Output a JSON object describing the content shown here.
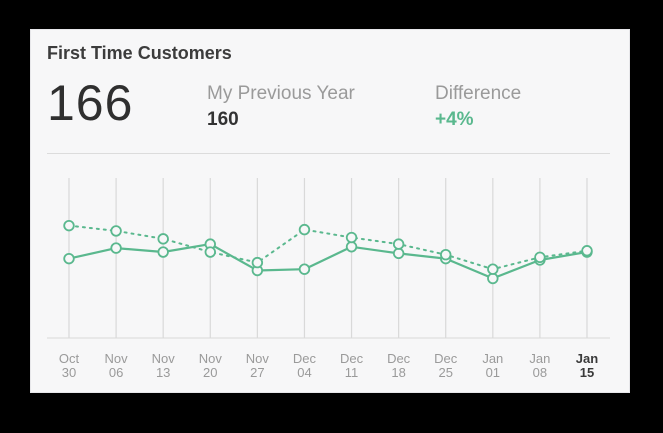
{
  "card": {
    "title": "First Time Customers",
    "value": "166",
    "previous_label": "My Previous Year",
    "previous_value": "160",
    "difference_label": "Difference",
    "difference_value": "+4%"
  },
  "colors": {
    "accent": "#5ab88e",
    "grid": "#d9d9d9",
    "text_muted": "#9a9a9a"
  },
  "chart_data": {
    "type": "line",
    "x": [
      [
        "Oct",
        "30"
      ],
      [
        "Nov",
        "06"
      ],
      [
        "Nov",
        "13"
      ],
      [
        "Nov",
        "20"
      ],
      [
        "Nov",
        "27"
      ],
      [
        "Dec",
        "04"
      ],
      [
        "Dec",
        "11"
      ],
      [
        "Dec",
        "18"
      ],
      [
        "Dec",
        "25"
      ],
      [
        "Jan",
        "01"
      ],
      [
        "Jan",
        "08"
      ],
      [
        "Jan",
        "15"
      ]
    ],
    "ylim": [
      0,
      100
    ],
    "grid": "vertical",
    "series": [
      {
        "style": "solid",
        "values": [
          48,
          56,
          53,
          59,
          39,
          40,
          57,
          52,
          48,
          33,
          47,
          53
        ]
      },
      {
        "style": "dotted",
        "values": [
          73,
          69,
          63,
          53,
          45,
          70,
          64,
          59,
          51,
          40,
          49,
          54
        ]
      }
    ]
  }
}
